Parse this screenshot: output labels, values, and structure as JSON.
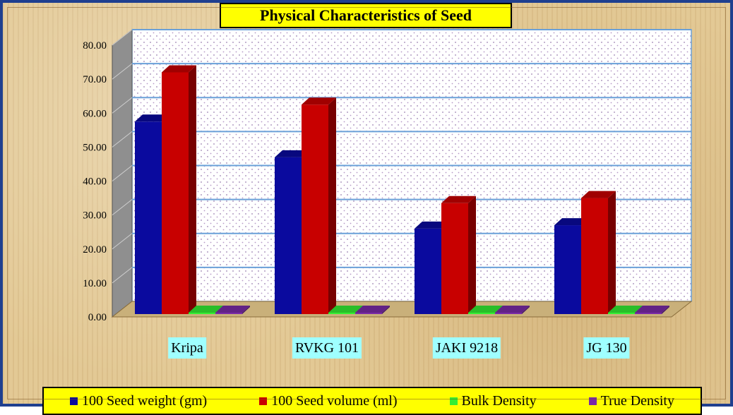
{
  "chart_data": {
    "type": "bar",
    "title": "Physical Characteristics of Seed",
    "categories": [
      "Kripa",
      "RVKG 101",
      "JAKI 9218",
      "JG 130"
    ],
    "series": [
      {
        "name": "100 Seed weight (gm)",
        "values": [
          57.5,
          47.0,
          26.0,
          27.0
        ],
        "color": "#0a0a9e"
      },
      {
        "name": "100 Seed volume (ml)",
        "values": [
          72.0,
          62.5,
          33.5,
          35.0
        ],
        "color": "#c80000"
      },
      {
        "name": "Bulk Density",
        "values": [
          0.8,
          0.8,
          0.8,
          0.8
        ],
        "color": "#33ee33"
      },
      {
        "name": "True Density",
        "values": [
          1.1,
          1.1,
          1.1,
          1.1
        ],
        "color": "#7a2aa8"
      }
    ],
    "yticks": [
      "0.00",
      "10.00",
      "20.00",
      "30.00",
      "40.00",
      "50.00",
      "60.00",
      "70.00",
      "80.00"
    ],
    "ylim": [
      0,
      80
    ],
    "grid": true,
    "legend_position": "bottom"
  }
}
